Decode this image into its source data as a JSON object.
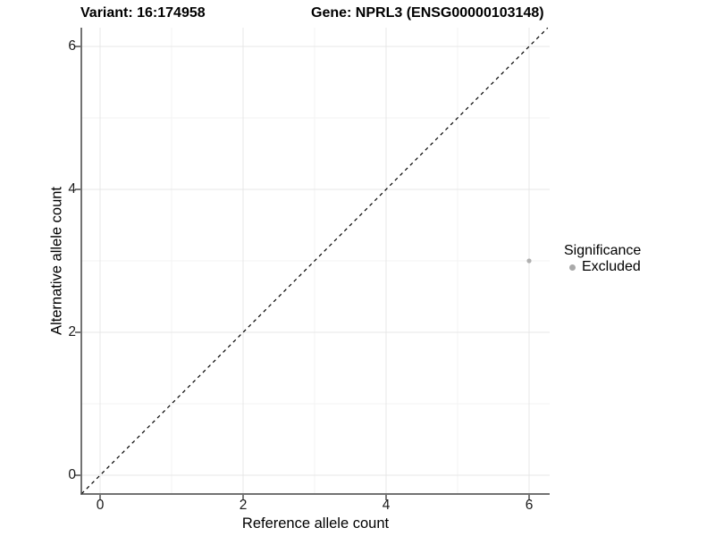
{
  "plot": {
    "title_variant": "Variant: 16:174958",
    "title_gene": "Gene: NPRL3 (ENSG00000103148)"
  },
  "chart_data": {
    "type": "scatter",
    "title": "Variant: 16:174958   Gene: NPRL3 (ENSG00000103148)",
    "xlabel": "Reference allele count",
    "ylabel": "Alternative allele count",
    "x_ticks": [
      "0",
      "2",
      "4",
      "6"
    ],
    "y_ticks": [
      "0",
      "2",
      "4",
      "6"
    ],
    "xlim": [
      -0.26,
      6.26
    ],
    "ylim": [
      -0.26,
      6.26
    ],
    "grid": {
      "major": [
        0,
        2,
        4,
        6
      ],
      "minor": [
        1,
        3,
        5
      ],
      "on": true
    },
    "diagonal_line": {
      "style": "dashed",
      "slope": 1,
      "intercept": 0,
      "color": "#000000"
    },
    "points": [
      {
        "x": 6,
        "y": 3,
        "significance": "Excluded",
        "color": "#b0b0b0",
        "radius": 2.6
      }
    ],
    "legend": {
      "position": "right",
      "title": "Significance",
      "entries": [
        {
          "label": "Excluded",
          "color": "#a9a9a9"
        }
      ]
    }
  },
  "colors": {
    "background": "#ffffff",
    "grid_major": "#e7e7e7",
    "grid_minor": "#f3f3f3",
    "axis_line": "#444444",
    "tick_mark": "#333333",
    "text": "#000000",
    "point": "#b0b0b0"
  }
}
